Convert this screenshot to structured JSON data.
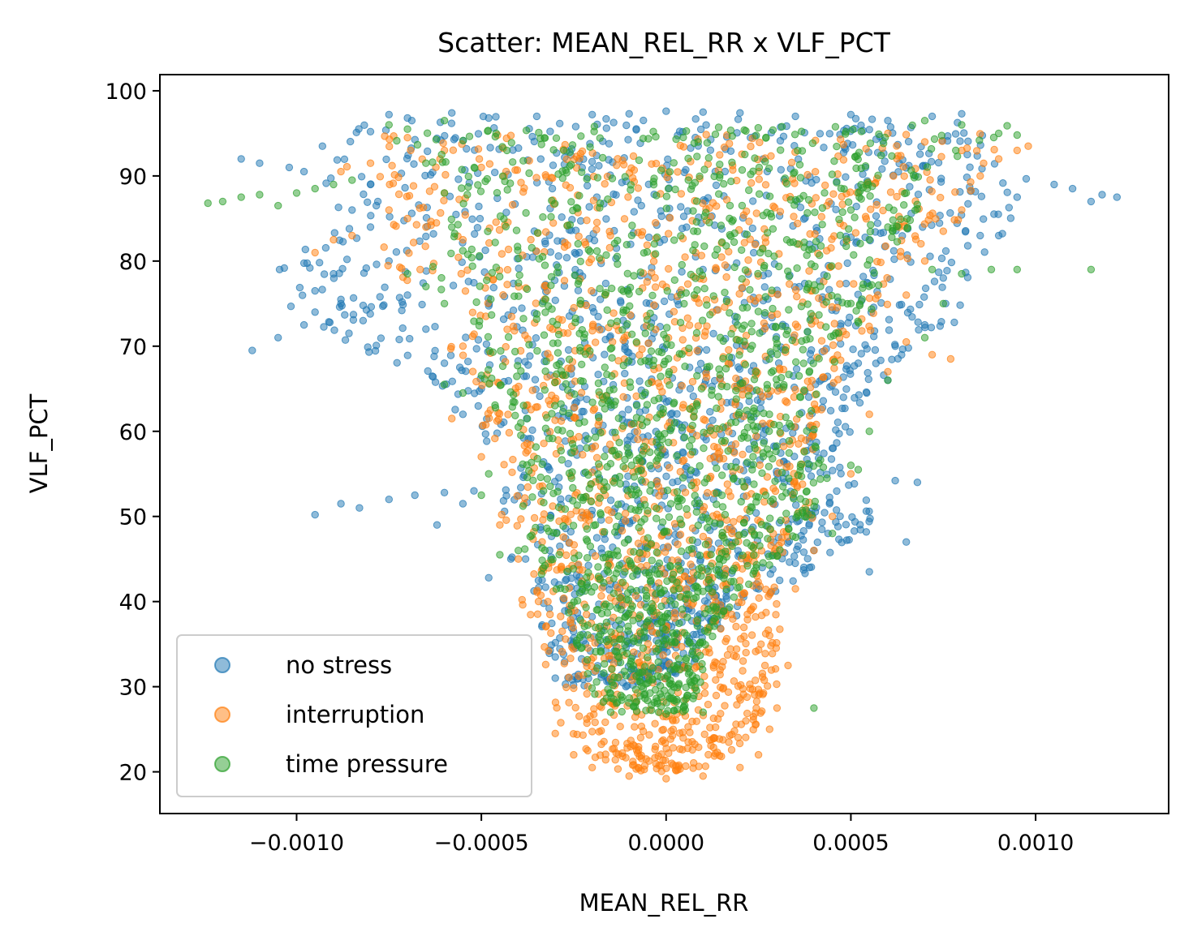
{
  "chart_data": {
    "type": "scatter",
    "title": "Scatter: MEAN_REL_RR x VLF_PCT",
    "xlabel": "MEAN_REL_RR",
    "ylabel": "VLF_PCT",
    "xlim": [
      -0.00137,
      0.00136
    ],
    "ylim": [
      15.1,
      101.9
    ],
    "x_ticks": [
      -0.001,
      -0.0005,
      0.0,
      0.0005,
      0.001
    ],
    "x_tick_labels": [
      "−0.0010",
      "−0.0005",
      "0.0000",
      "0.0005",
      "0.0010"
    ],
    "y_ticks": [
      20,
      30,
      40,
      50,
      60,
      70,
      80,
      90,
      100
    ],
    "y_tick_labels": [
      "20",
      "30",
      "40",
      "50",
      "60",
      "70",
      "80",
      "90",
      "100"
    ],
    "grid": false,
    "legend_position": "lower-left",
    "point_alpha": 0.5,
    "series": [
      {
        "name": "no stress",
        "color": "#1f77b4",
        "envelope": [
          [
            97,
            -0.00082,
            0.00082
          ],
          [
            90,
            -0.00095,
            0.00098
          ],
          [
            85,
            -0.00095,
            0.00095
          ],
          [
            80,
            -0.00105,
            0.00085
          ],
          [
            75,
            -0.00105,
            0.0008
          ],
          [
            70,
            -0.00085,
            0.0007
          ],
          [
            65,
            -0.0006,
            0.00055
          ],
          [
            60,
            -0.00055,
            0.0005
          ],
          [
            55,
            -0.00045,
            0.0005
          ],
          [
            50,
            -0.00045,
            0.0006
          ],
          [
            45,
            -0.00042,
            0.00045
          ],
          [
            40,
            -0.00035,
            0.00025
          ],
          [
            35,
            -0.00033,
            0.0001
          ],
          [
            30,
            -0.00028,
            5e-05
          ]
        ],
        "values": [
          [
            -0.00112,
            69.5
          ],
          [
            -0.00105,
            71.0
          ],
          [
            -0.00098,
            72.5
          ],
          [
            -0.00095,
            74.0
          ],
          [
            -0.00115,
            92.0
          ],
          [
            -0.0011,
            91.5
          ],
          [
            -0.00102,
            91.0
          ],
          [
            -0.00098,
            90.5
          ],
          [
            -0.00093,
            93.5
          ],
          [
            -0.00095,
            76.5
          ],
          [
            -0.0009,
            78.5
          ],
          [
            -0.00088,
            75.0
          ],
          [
            -0.00082,
            73.0
          ],
          [
            -0.0008,
            89.0
          ],
          [
            -0.00078,
            87.0
          ],
          [
            -0.00075,
            97.2
          ],
          [
            -0.0007,
            96.8
          ],
          [
            -0.00095,
            50.2
          ],
          [
            -0.00088,
            51.5
          ],
          [
            -0.00083,
            51.0
          ],
          [
            -0.00075,
            52.0
          ],
          [
            -0.00068,
            52.5
          ],
          [
            -0.00062,
            49.0
          ],
          [
            -0.0006,
            52.8
          ],
          [
            -0.00055,
            51.5
          ],
          [
            -0.00052,
            53.0
          ],
          [
            -0.00048,
            42.8
          ],
          [
            -0.00042,
            45.0
          ],
          [
            -0.0003,
            33.5
          ],
          [
            -0.0003,
            31.0
          ],
          [
            0.00065,
            47.0
          ],
          [
            0.00055,
            43.5
          ],
          [
            0.00062,
            54.2
          ],
          [
            0.00068,
            54.0
          ],
          [
            0.0007,
            72.5
          ],
          [
            0.00078,
            72.8
          ],
          [
            0.00085,
            83.0
          ],
          [
            0.0009,
            83.0
          ],
          [
            0.00095,
            87.5
          ],
          [
            0.00105,
            89.0
          ],
          [
            0.0011,
            88.5
          ],
          [
            0.00115,
            87.0
          ],
          [
            0.00118,
            87.8
          ],
          [
            0.00122,
            87.5
          ],
          [
            0.0008,
            97.3
          ],
          [
            0.00072,
            97.0
          ],
          [
            0.0006,
            96.5
          ],
          [
            0.0005,
            97.2
          ],
          [
            0.00035,
            97.0
          ],
          [
            0.0002,
            97.4
          ],
          [
            0.0001,
            97.5
          ],
          [
            0.0,
            97.6
          ],
          [
            -0.0001,
            97.3
          ],
          [
            -0.0002,
            97.2
          ],
          [
            -0.00035,
            97.0
          ],
          [
            -0.00048,
            96.8
          ],
          [
            -0.00058,
            97.4
          ],
          [
            0.0003,
            55.0
          ],
          [
            0.00038,
            50.0
          ],
          [
            0.0004,
            46.0
          ],
          [
            0.00045,
            58.0
          ],
          [
            0.00048,
            64.0
          ],
          [
            0.00052,
            68.0
          ],
          [
            0.0006,
            66.0
          ],
          [
            0.00062,
            70.0
          ],
          [
            -0.0005,
            65.0
          ],
          [
            -0.00055,
            62.0
          ],
          [
            -0.0006,
            68.0
          ],
          [
            -0.00065,
            72.0
          ],
          [
            -0.0007,
            76.0
          ],
          [
            -0.00075,
            80.0
          ],
          [
            -0.0008,
            84.0
          ],
          [
            -0.00085,
            86.0
          ]
        ]
      },
      {
        "name": "interruption",
        "color": "#ff7f0e",
        "envelope": [
          [
            95,
            -0.0009,
            0.00095
          ],
          [
            90,
            -0.00088,
            0.00085
          ],
          [
            85,
            -0.0008,
            0.0008
          ],
          [
            80,
            -0.00085,
            0.00065
          ],
          [
            75,
            -0.00065,
            0.0006
          ],
          [
            70,
            -0.0006,
            0.00055
          ],
          [
            65,
            -0.0005,
            0.00045
          ],
          [
            60,
            -0.00055,
            0.0004
          ],
          [
            55,
            -0.00048,
            0.0004
          ],
          [
            50,
            -0.00045,
            0.0004
          ],
          [
            45,
            -0.00035,
            0.0003
          ],
          [
            40,
            -0.0004,
            0.0003
          ],
          [
            35,
            -0.00035,
            0.00032
          ],
          [
            30,
            -0.00032,
            0.0003
          ],
          [
            25,
            -0.00028,
            0.00025
          ],
          [
            20,
            -0.00015,
            0.0001
          ]
        ],
        "values": [
          [
            -0.00095,
            81.0
          ],
          [
            -0.0009,
            82.5
          ],
          [
            -0.00085,
            83.0
          ],
          [
            -0.00088,
            90.5
          ],
          [
            -0.0008,
            91.5
          ],
          [
            -0.00075,
            86.0
          ],
          [
            -0.0007,
            85.0
          ],
          [
            -0.00065,
            84.0
          ],
          [
            -0.00055,
            82.5
          ],
          [
            -0.0006,
            88.0
          ],
          [
            -0.00055,
            70.0
          ],
          [
            -0.00058,
            61.5
          ],
          [
            -0.0005,
            57.0
          ],
          [
            -0.00045,
            49.0
          ],
          [
            -0.0004,
            45.0
          ],
          [
            -0.00032,
            40.0
          ],
          [
            -0.0003,
            24.5
          ],
          [
            -0.00025,
            22.0
          ],
          [
            -0.0002,
            20.5
          ],
          [
            -0.0001,
            19.5
          ],
          [
            0.0,
            19.2
          ],
          [
            0.0001,
            19.5
          ],
          [
            0.0002,
            20.5
          ],
          [
            0.00025,
            22.0
          ],
          [
            0.00028,
            25.0
          ],
          [
            0.0003,
            27.5
          ],
          [
            0.00033,
            32.5
          ],
          [
            0.00028,
            36.0
          ],
          [
            0.00022,
            38.5
          ],
          [
            0.00035,
            41.5
          ],
          [
            0.0004,
            46.0
          ],
          [
            0.00045,
            50.0
          ],
          [
            0.0005,
            55.0
          ],
          [
            0.00055,
            62.0
          ],
          [
            0.0006,
            67.0
          ],
          [
            0.00065,
            70.5
          ],
          [
            0.00072,
            69.0
          ],
          [
            0.00077,
            68.5
          ],
          [
            0.00065,
            76.0
          ],
          [
            0.0007,
            80.0
          ],
          [
            0.00075,
            83.5
          ],
          [
            0.0008,
            86.0
          ],
          [
            0.00085,
            90.0
          ],
          [
            0.0009,
            92.0
          ],
          [
            0.00095,
            93.0
          ],
          [
            0.00098,
            93.5
          ],
          [
            0.0008,
            93.0
          ],
          [
            0.0007,
            94.0
          ],
          [
            0.0006,
            95.0
          ],
          [
            -0.0007,
            94.5
          ],
          [
            -0.0006,
            93.0
          ],
          [
            -0.0005,
            91.0
          ]
        ]
      },
      {
        "name": "time pressure",
        "color": "#2ca02c",
        "envelope": [
          [
            96,
            -0.00085,
            0.00095
          ],
          [
            90,
            -0.0006,
            0.0007
          ],
          [
            85,
            -0.00058,
            0.00068
          ],
          [
            80,
            -0.00065,
            0.0006
          ],
          [
            75,
            -0.0006,
            0.00058
          ],
          [
            70,
            -0.0005,
            0.00048
          ],
          [
            65,
            -0.00052,
            0.00042
          ],
          [
            60,
            -0.00042,
            0.0004
          ],
          [
            55,
            -0.0004,
            0.00045
          ],
          [
            50,
            -0.00042,
            0.0004
          ],
          [
            45,
            -0.00038,
            0.0003
          ],
          [
            40,
            -0.00028,
            0.00018
          ],
          [
            35,
            -0.00025,
            0.00012
          ],
          [
            30,
            -0.00022,
            0.0001
          ],
          [
            27,
            -0.00015,
            5e-05
          ]
        ],
        "values": [
          [
            -0.00124,
            86.8
          ],
          [
            -0.0012,
            87.0
          ],
          [
            -0.00115,
            87.5
          ],
          [
            -0.0011,
            87.8
          ],
          [
            -0.00105,
            86.5
          ],
          [
            -0.001,
            88.0
          ],
          [
            -0.00095,
            88.5
          ],
          [
            -0.0009,
            89.0
          ],
          [
            -0.00085,
            89.5
          ],
          [
            -0.0007,
            78.5
          ],
          [
            -0.00065,
            77.0
          ],
          [
            -0.0006,
            75.0
          ],
          [
            -0.0006,
            65.5
          ],
          [
            -0.00055,
            64.5
          ],
          [
            -0.0005,
            52.5
          ],
          [
            -0.00048,
            55.0
          ],
          [
            -0.00045,
            45.5
          ],
          [
            -0.0004,
            46.0
          ],
          [
            0.00045,
            48.0
          ],
          [
            0.0005,
            56.0
          ],
          [
            0.00052,
            55.5
          ],
          [
            0.00055,
            60.0
          ],
          [
            0.0006,
            66.0
          ],
          [
            0.0007,
            71.0
          ],
          [
            0.00075,
            75.0
          ],
          [
            0.00072,
            79.0
          ],
          [
            0.0008,
            78.5
          ],
          [
            0.00088,
            79.0
          ],
          [
            0.00095,
            79.0
          ],
          [
            0.00115,
            79.0
          ],
          [
            0.0009,
            95.0
          ],
          [
            0.00095,
            94.8
          ],
          [
            0.0008,
            96.0
          ],
          [
            0.0007,
            96.5
          ],
          [
            -0.00075,
            96.0
          ],
          [
            -0.0007,
            95.5
          ],
          [
            -0.0006,
            96.5
          ],
          [
            -0.00065,
            91.5
          ],
          [
            -0.0006,
            88.0
          ],
          [
            -0.00058,
            84.0
          ],
          [
            0.00065,
            88.0
          ],
          [
            0.0006,
            84.0
          ],
          [
            0.0005,
            86.0
          ],
          [
            0.0004,
            27.5
          ],
          [
            -0.00015,
            27.0
          ],
          [
            0.0,
            26.8
          ],
          [
            0.0001,
            27.0
          ]
        ]
      }
    ]
  }
}
